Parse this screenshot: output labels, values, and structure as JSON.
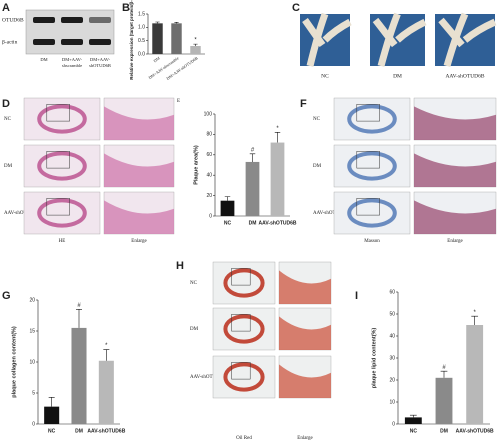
{
  "panel_labels": [
    "A",
    "B",
    "C",
    "D",
    "F",
    "G",
    "H",
    "I"
  ],
  "blot": {
    "rows": [
      "OTUD6B",
      "β-actin"
    ],
    "lanes": [
      [
        "DM"
      ],
      [
        "DM+AAV-",
        "shscramble"
      ],
      [
        "DM+AAV-",
        "shOTUD6B"
      ]
    ]
  },
  "photos": {
    "labels": [
      "NC",
      "DM",
      "AAV-shOTUD6B"
    ]
  },
  "he": {
    "rows": [
      "NC",
      "DM",
      "AAV-shOTUD6B"
    ],
    "columns": [
      "HE",
      "Enlarge"
    ],
    "mark": "E"
  },
  "masson": {
    "rows": [
      "NC",
      "DM",
      "AAV-shOTUD6B"
    ],
    "columns": [
      "Masson",
      "Enlarge"
    ]
  },
  "oil_red": {
    "rows": [
      "NC",
      "DM",
      "AAV-shOTUD6B"
    ],
    "columns": [
      "Oil Red",
      "Enlarge"
    ]
  },
  "chart_data": [
    {
      "type": "bar",
      "ylabel": "Relative expression (target protein/β-actin)",
      "categories": [
        "DM",
        "DM+AAV-shscramble",
        "DM+AAV-shOTUD6B"
      ],
      "values": [
        1.15,
        1.15,
        0.3
      ],
      "errors": [
        0.05,
        0.04,
        0.07
      ],
      "colors": [
        "#3a3a3a",
        "#6e6e6e",
        "#b5b5b5"
      ],
      "ylim": [
        0,
        1.5
      ],
      "yticks": [
        {
          "value": 0,
          "label": "0.0"
        },
        {
          "value": 0.5,
          "label": "0.5"
        },
        {
          "value": 1,
          "label": "1.0"
        },
        {
          "value": 1.5,
          "label": "1.5"
        }
      ],
      "annotations": [
        {
          "category": "DM+AAV-shOTUD6B",
          "text": "*"
        }
      ]
    },
    {
      "type": "bar",
      "ylabel": "Plaque area(%)",
      "categories": [
        "NC",
        "DM",
        "AAV-shOTUD6B"
      ],
      "values": [
        15,
        53,
        72
      ],
      "errors": [
        4,
        8,
        10
      ],
      "colors": [
        "#111111",
        "#8a8a8a",
        "#b8b8b8"
      ],
      "ylim": [
        0,
        100
      ],
      "yticks": [
        0,
        20,
        40,
        60,
        80,
        100
      ],
      "annotations": [
        {
          "category": "DM",
          "text": "#"
        },
        {
          "category": "AAV-shOTUD6B",
          "text": "*"
        }
      ]
    },
    {
      "type": "bar",
      "ylabel": "plaque collagen content(%)",
      "categories": [
        "NC",
        "DM",
        "AAV-shOTUD6B"
      ],
      "values": [
        2.8,
        15.5,
        10.2
      ],
      "errors": [
        1.5,
        3,
        1.8
      ],
      "colors": [
        "#111111",
        "#8a8a8a",
        "#b8b8b8"
      ],
      "ylim": [
        0,
        20
      ],
      "yticks": [
        0,
        5,
        10,
        15,
        20
      ],
      "annotations": [
        {
          "category": "DM",
          "text": "#"
        },
        {
          "category": "AAV-shOTUD6B",
          "text": "*"
        }
      ]
    },
    {
      "type": "bar",
      "ylabel": "plaque lipid content(%)",
      "categories": [
        "NC",
        "DM",
        "AAV-shOTUD6B"
      ],
      "values": [
        3,
        21,
        45
      ],
      "errors": [
        1,
        3,
        4
      ],
      "colors": [
        "#111111",
        "#8a8a8a",
        "#b8b8b8"
      ],
      "ylim": [
        0,
        60
      ],
      "yticks": [
        0,
        10,
        20,
        30,
        40,
        50,
        60
      ],
      "annotations": [
        {
          "category": "DM",
          "text": "#"
        },
        {
          "category": "AAV-shOTUD6B",
          "text": "*"
        }
      ]
    }
  ]
}
